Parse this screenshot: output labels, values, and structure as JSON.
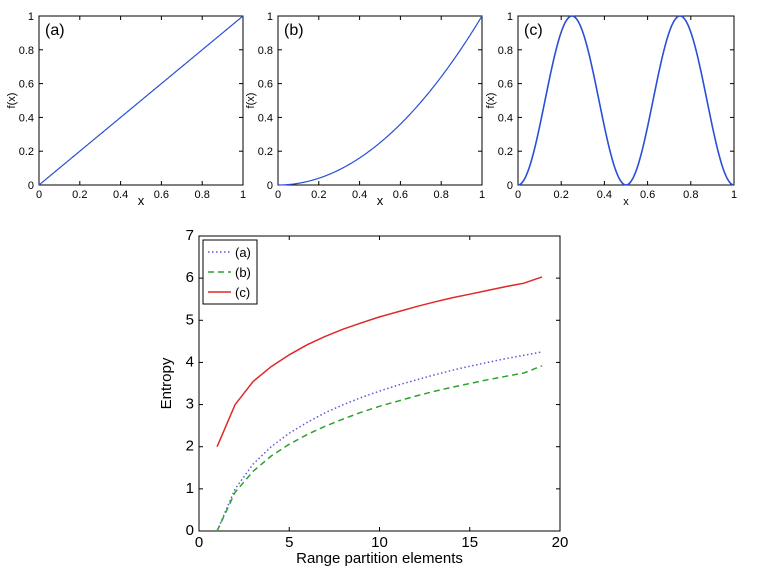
{
  "figure": {
    "background": "#ffffff"
  },
  "chart_data": [
    {
      "id": "a",
      "type": "line",
      "panel_label": "(a)",
      "xlabel": "x",
      "ylabel": "f(x)",
      "xlim": [
        0,
        1
      ],
      "ylim": [
        0,
        1
      ],
      "xticks": [
        0,
        0.2,
        0.4,
        0.6,
        0.8,
        1
      ],
      "yticks": [
        0,
        0.2,
        0.4,
        0.6,
        0.8,
        1
      ],
      "xtick_labels": [
        "0",
        "0.2",
        "0.4",
        "0.6",
        "0.8",
        "1"
      ],
      "ytick_labels": [
        "0",
        "0.2",
        "0.4",
        "0.6",
        "0.8",
        "1"
      ],
      "function": "f(x) = x",
      "x": [
        0,
        0.1,
        0.2,
        0.3,
        0.4,
        0.5,
        0.6,
        0.7,
        0.8,
        0.9,
        1.0
      ],
      "y": [
        0,
        0.1,
        0.2,
        0.3,
        0.4,
        0.5,
        0.6,
        0.7,
        0.8,
        0.9,
        1.0
      ],
      "color": "#2a4fd6"
    },
    {
      "id": "b",
      "type": "line",
      "panel_label": "(b)",
      "xlabel": "x",
      "ylabel": "f(x)",
      "xlim": [
        0,
        1
      ],
      "ylim": [
        0,
        1
      ],
      "xticks": [
        0,
        0.2,
        0.4,
        0.6,
        0.8,
        1
      ],
      "yticks": [
        0,
        0.2,
        0.4,
        0.6,
        0.8,
        1
      ],
      "xtick_labels": [
        "0",
        "0.2",
        "0.4",
        "0.6",
        "0.8",
        "1"
      ],
      "ytick_labels": [
        "0",
        "0.2",
        "0.4",
        "0.6",
        "0.8",
        "1"
      ],
      "function": "f(x) = x^2",
      "x": [
        0,
        0.1,
        0.2,
        0.3,
        0.4,
        0.5,
        0.6,
        0.7,
        0.8,
        0.9,
        1.0
      ],
      "y": [
        0,
        0.01,
        0.04,
        0.09,
        0.16,
        0.25,
        0.36,
        0.49,
        0.64,
        0.81,
        1.0
      ],
      "color": "#2a4fd6"
    },
    {
      "id": "c",
      "type": "line",
      "panel_label": "(c)",
      "xlabel": "x",
      "ylabel": "f(x)",
      "xlim": [
        0,
        1
      ],
      "ylim": [
        0,
        1
      ],
      "xticks": [
        0,
        0.2,
        0.4,
        0.6,
        0.8,
        1
      ],
      "yticks": [
        0,
        0.2,
        0.4,
        0.6,
        0.8,
        1
      ],
      "xtick_labels": [
        "0",
        "0.2",
        "0.4",
        "0.6",
        "0.8",
        "1"
      ],
      "ytick_labels": [
        "0",
        "0.2",
        "0.4",
        "0.6",
        "0.8",
        "1"
      ],
      "function": "f(x) = sin^2(2*pi*x)",
      "x": [
        0,
        0.05,
        0.1,
        0.15,
        0.2,
        0.25,
        0.3,
        0.35,
        0.4,
        0.45,
        0.5,
        0.55,
        0.6,
        0.65,
        0.7,
        0.75,
        0.8,
        0.85,
        0.9,
        0.95,
        1.0
      ],
      "y": [
        0,
        0.095,
        0.345,
        0.655,
        0.905,
        1.0,
        0.905,
        0.655,
        0.345,
        0.095,
        0,
        0.095,
        0.345,
        0.655,
        0.905,
        1.0,
        0.905,
        0.655,
        0.345,
        0.095,
        0
      ],
      "color": "#2a4fd6"
    },
    {
      "id": "entropy",
      "type": "line",
      "xlabel": "Range partition elements",
      "ylabel": "Entropy",
      "xlim": [
        0,
        20
      ],
      "ylim": [
        0,
        7
      ],
      "xticks": [
        0,
        5,
        10,
        15,
        20
      ],
      "yticks": [
        0,
        1,
        2,
        3,
        4,
        5,
        6,
        7
      ],
      "xtick_labels": [
        "0",
        "5",
        "10",
        "15",
        "20"
      ],
      "ytick_labels": [
        "0",
        "1",
        "2",
        "3",
        "4",
        "5",
        "6",
        "7"
      ],
      "legend_position": "top-left",
      "x": [
        1,
        2,
        3,
        4,
        5,
        6,
        7,
        8,
        9,
        10,
        11,
        12,
        13,
        14,
        15,
        16,
        17,
        18,
        19
      ],
      "series": [
        {
          "name": "(a)",
          "style": "dotted",
          "color": "#5b5bd6",
          "values": [
            0,
            1.0,
            1.59,
            2.0,
            2.32,
            2.58,
            2.81,
            3.0,
            3.17,
            3.32,
            3.46,
            3.58,
            3.7,
            3.81,
            3.91,
            4.0,
            4.09,
            4.17,
            4.25
          ]
        },
        {
          "name": "(b)",
          "style": "dashed",
          "color": "#2ea02e",
          "values": [
            0,
            0.92,
            1.42,
            1.78,
            2.06,
            2.29,
            2.49,
            2.66,
            2.82,
            2.96,
            3.08,
            3.2,
            3.31,
            3.41,
            3.5,
            3.59,
            3.67,
            3.75,
            3.92
          ]
        },
        {
          "name": "(c)",
          "style": "solid",
          "color": "#e02828",
          "values": [
            2.0,
            3.0,
            3.55,
            3.9,
            4.18,
            4.42,
            4.62,
            4.79,
            4.94,
            5.08,
            5.2,
            5.32,
            5.43,
            5.53,
            5.62,
            5.71,
            5.8,
            5.88,
            6.03
          ]
        }
      ]
    }
  ]
}
